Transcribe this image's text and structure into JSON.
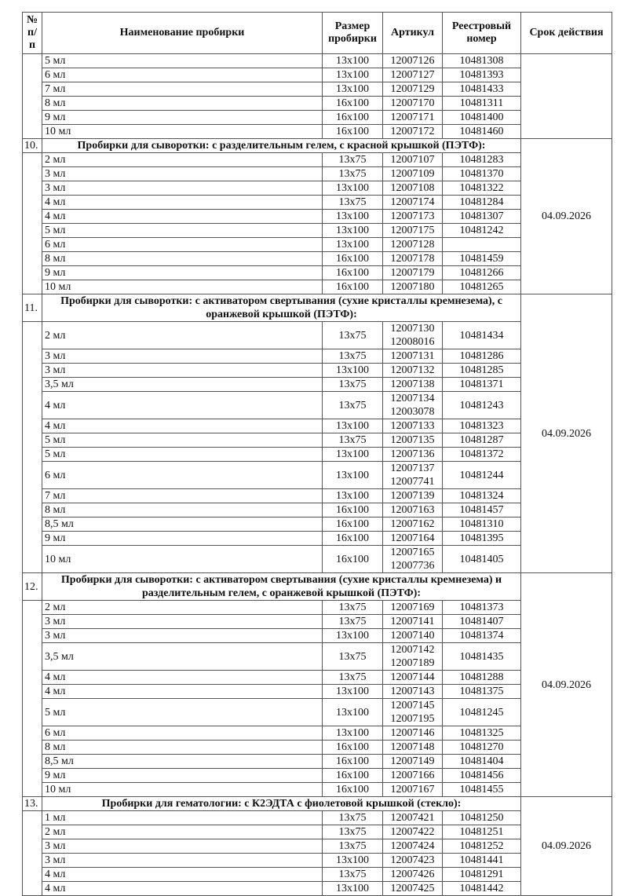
{
  "table": {
    "headers": [
      "№ п/п",
      "Наименование пробирки",
      "Размер пробирки",
      "Артикул",
      "Реестровый номер",
      "Срок действия"
    ],
    "sections": [
      {
        "number": "",
        "title": "",
        "date": "",
        "rows": [
          {
            "name": "5 мл",
            "size": "13x100",
            "article": [
              "12007126"
            ],
            "registry": "10481308"
          },
          {
            "name": "6 мл",
            "size": "13x100",
            "article": [
              "12007127"
            ],
            "registry": "10481393"
          },
          {
            "name": "7 мл",
            "size": "13x100",
            "article": [
              "12007129"
            ],
            "registry": "10481433"
          },
          {
            "name": "8 мл",
            "size": "16x100",
            "article": [
              "12007170"
            ],
            "registry": "10481311"
          },
          {
            "name": "9 мл",
            "size": "16x100",
            "article": [
              "12007171"
            ],
            "registry": "10481400"
          },
          {
            "name": "10 мл",
            "size": "16x100",
            "article": [
              "12007172"
            ],
            "registry": "10481460"
          }
        ]
      },
      {
        "number": "10.",
        "title": "Пробирки для сыворотки: с разделительным гелем, с красной крышкой (ПЭТФ):",
        "date": "04.09.2026",
        "rows": [
          {
            "name": "2 мл",
            "size": "13x75",
            "article": [
              "12007107"
            ],
            "registry": "10481283"
          },
          {
            "name": "3 мл",
            "size": "13x75",
            "article": [
              "12007109"
            ],
            "registry": "10481370"
          },
          {
            "name": "3 мл",
            "size": "13x100",
            "article": [
              "12007108"
            ],
            "registry": "10481322"
          },
          {
            "name": "4 мл",
            "size": "13x75",
            "article": [
              "12007174"
            ],
            "registry": "10481284"
          },
          {
            "name": "4 мл",
            "size": "13x100",
            "article": [
              "12007173"
            ],
            "registry": "10481307"
          },
          {
            "name": "5 мл",
            "size": "13x100",
            "article": [
              "12007175"
            ],
            "registry": "10481242"
          },
          {
            "name": "6 мл",
            "size": "13x100",
            "article": [
              "12007128"
            ],
            "registry": ""
          },
          {
            "name": "8 мл",
            "size": "16x100",
            "article": [
              "12007178"
            ],
            "registry": "10481459"
          },
          {
            "name": "9 мл",
            "size": "16x100",
            "article": [
              "12007179"
            ],
            "registry": "10481266"
          },
          {
            "name": "10 мл",
            "size": "16x100",
            "article": [
              "12007180"
            ],
            "registry": "10481265"
          }
        ]
      },
      {
        "number": "11.",
        "title": "Пробирки для сыворотки: с активатором свертывания (сухие кристаллы кремнезема), с оранжевой крышкой (ПЭТФ):",
        "date": "04.09.2026",
        "rows": [
          {
            "name": "2 мл",
            "size": "13x75",
            "article": [
              "12007130",
              "12008016"
            ],
            "registry": "10481434"
          },
          {
            "name": "3 мл",
            "size": "13x75",
            "article": [
              "12007131"
            ],
            "registry": "10481286"
          },
          {
            "name": "3 мл",
            "size": "13x100",
            "article": [
              "12007132"
            ],
            "registry": "10481285"
          },
          {
            "name": "3,5 мл",
            "size": "13x75",
            "article": [
              "12007138"
            ],
            "registry": "10481371"
          },
          {
            "name": "4 мл",
            "size": "13x75",
            "article": [
              "12007134",
              "12003078"
            ],
            "registry": "10481243"
          },
          {
            "name": "4 мл",
            "size": "13x100",
            "article": [
              "12007133"
            ],
            "registry": "10481323"
          },
          {
            "name": "5 мл",
            "size": "13x75",
            "article": [
              "12007135"
            ],
            "registry": "10481287"
          },
          {
            "name": "5 мл",
            "size": "13x100",
            "article": [
              "12007136"
            ],
            "registry": "10481372"
          },
          {
            "name": "6 мл",
            "size": "13x100",
            "article": [
              "12007137",
              "12007741"
            ],
            "registry": "10481244"
          },
          {
            "name": "7 мл",
            "size": "13x100",
            "article": [
              "12007139"
            ],
            "registry": "10481324"
          },
          {
            "name": "8 мл",
            "size": "16x100",
            "article": [
              "12007163"
            ],
            "registry": "10481457"
          },
          {
            "name": "8,5 мл",
            "size": "16x100",
            "article": [
              "12007162"
            ],
            "registry": "10481310"
          },
          {
            "name": "9 мл",
            "size": "16x100",
            "article": [
              "12007164"
            ],
            "registry": "10481395"
          },
          {
            "name": "10 мл",
            "size": "16x100",
            "article": [
              "12007165",
              "12007736"
            ],
            "registry": "10481405"
          }
        ]
      },
      {
        "number": "12.",
        "title": "Пробирки для сыворотки: с активатором свертывания (сухие кристаллы кремнезема) и разделительным гелем, с оранжевой крышкой (ПЭТФ):",
        "date": "04.09.2026",
        "rows": [
          {
            "name": "2 мл",
            "size": "13x75",
            "article": [
              "12007169"
            ],
            "registry": "10481373"
          },
          {
            "name": "3 мл",
            "size": "13x75",
            "article": [
              "12007141"
            ],
            "registry": "10481407"
          },
          {
            "name": "3 мл",
            "size": "13x100",
            "article": [
              "12007140"
            ],
            "registry": "10481374"
          },
          {
            "name": "3,5 мл",
            "size": "13x75",
            "article": [
              "12007142",
              "12007189"
            ],
            "registry": "10481435"
          },
          {
            "name": "4 мл",
            "size": "13x75",
            "article": [
              "12007144"
            ],
            "registry": "10481288"
          },
          {
            "name": "4 мл",
            "size": "13x100",
            "article": [
              "12007143"
            ],
            "registry": "10481375"
          },
          {
            "name": "5 мл",
            "size": "13x100",
            "article": [
              "12007145",
              "12007195"
            ],
            "registry": "10481245"
          },
          {
            "name": "6 мл",
            "size": "13x100",
            "article": [
              "12007146"
            ],
            "registry": "10481325"
          },
          {
            "name": "8 мл",
            "size": "16x100",
            "article": [
              "12007148"
            ],
            "registry": "10481270"
          },
          {
            "name": "8,5 мл",
            "size": "16x100",
            "article": [
              "12007149"
            ],
            "registry": "10481404"
          },
          {
            "name": "9 мл",
            "size": "16x100",
            "article": [
              "12007166"
            ],
            "registry": "10481456"
          },
          {
            "name": "10 мл",
            "size": "16x100",
            "article": [
              "12007167"
            ],
            "registry": "10481455"
          }
        ]
      },
      {
        "number": "13.",
        "title": "Пробирки для гематологии: с К2ЭДТА с фиолетовой крышкой (стекло):",
        "date": "04.09.2026",
        "rows": [
          {
            "name": "1 мл",
            "size": "13x75",
            "article": [
              "12007421"
            ],
            "registry": "10481250"
          },
          {
            "name": "2 мл",
            "size": "13x75",
            "article": [
              "12007422"
            ],
            "registry": "10481251"
          },
          {
            "name": "3 мл",
            "size": "13x75",
            "article": [
              "12007424"
            ],
            "registry": "10481252"
          },
          {
            "name": "3 мл",
            "size": "13x100",
            "article": [
              "12007423"
            ],
            "registry": "10481441"
          },
          {
            "name": "4 мл",
            "size": "13x75",
            "article": [
              "12007426"
            ],
            "registry": "10481291"
          },
          {
            "name": "4 мл",
            "size": "13x100",
            "article": [
              "12007425"
            ],
            "registry": "10481442"
          }
        ]
      }
    ]
  }
}
